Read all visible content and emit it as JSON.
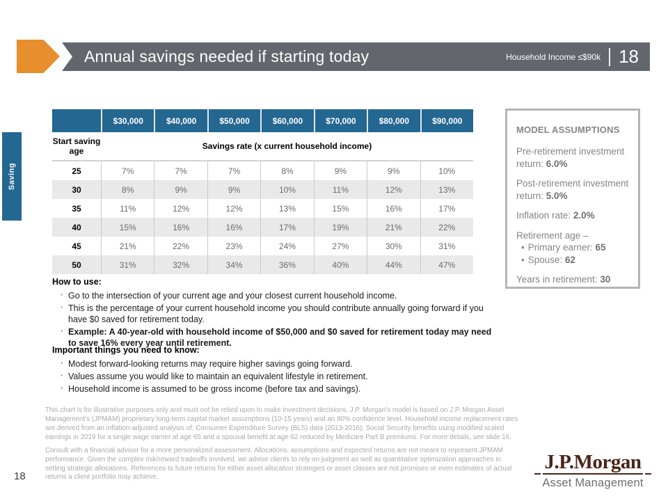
{
  "header": {
    "title": "Annual savings needed if starting today",
    "badge": "Household Income ≤$90k",
    "page_number": "18"
  },
  "side_tab": {
    "label": "Saving"
  },
  "table": {
    "income_columns": [
      "$30,000",
      "$40,000",
      "$50,000",
      "$60,000",
      "$70,000",
      "$80,000",
      "$90,000"
    ],
    "row_label_header": "Start saving age",
    "col_group_header": "Savings rate (x current household income)",
    "rows": [
      {
        "age": "25",
        "values": [
          "7%",
          "7%",
          "7%",
          "8%",
          "9%",
          "9%",
          "10%"
        ]
      },
      {
        "age": "30",
        "values": [
          "8%",
          "9%",
          "9%",
          "10%",
          "11%",
          "12%",
          "13%"
        ]
      },
      {
        "age": "35",
        "values": [
          "11%",
          "12%",
          "12%",
          "13%",
          "15%",
          "16%",
          "17%"
        ]
      },
      {
        "age": "40",
        "values": [
          "15%",
          "16%",
          "16%",
          "17%",
          "19%",
          "21%",
          "22%"
        ]
      },
      {
        "age": "45",
        "values": [
          "21%",
          "22%",
          "23%",
          "24%",
          "27%",
          "30%",
          "31%"
        ]
      },
      {
        "age": "50",
        "values": [
          "31%",
          "32%",
          "34%",
          "36%",
          "40%",
          "44%",
          "47%"
        ]
      }
    ]
  },
  "chart_data": {
    "type": "table",
    "title": "Annual savings needed if starting today",
    "columns": [
      "Start saving age",
      "$30,000",
      "$40,000",
      "$50,000",
      "$60,000",
      "$70,000",
      "$80,000",
      "$90,000"
    ],
    "rows": [
      [
        "25",
        "7%",
        "7%",
        "7%",
        "8%",
        "9%",
        "9%",
        "10%"
      ],
      [
        "30",
        "8%",
        "9%",
        "9%",
        "10%",
        "11%",
        "12%",
        "13%"
      ],
      [
        "35",
        "11%",
        "12%",
        "12%",
        "13%",
        "15%",
        "16%",
        "17%"
      ],
      [
        "40",
        "15%",
        "16%",
        "16%",
        "17%",
        "19%",
        "21%",
        "22%"
      ],
      [
        "45",
        "21%",
        "22%",
        "23%",
        "24%",
        "27%",
        "30%",
        "31%"
      ],
      [
        "50",
        "31%",
        "32%",
        "34%",
        "36%",
        "40%",
        "44%",
        "47%"
      ]
    ]
  },
  "how_to_use": {
    "heading": "How to use:",
    "bullets": [
      {
        "text": "Go to the intersection of your current age and your closest current household income.",
        "bold": false
      },
      {
        "text": "This is the percentage of your current household income you should contribute annually going forward if you have $0 saved for retirement today.",
        "bold": false
      },
      {
        "text": "Example: A 40-year-old with household income of $50,000 and $0 saved for retirement today may need to save 16% every year until retirement.",
        "bold": true
      }
    ]
  },
  "important": {
    "heading": "Important things you need to know:",
    "bullets": [
      {
        "text": "Modest forward-looking returns may require higher savings going forward.",
        "bold": false
      },
      {
        "text": "Values assume you would like to maintain an equivalent lifestyle in retirement.",
        "bold": false
      },
      {
        "text": "Household income is assumed to be gross income (before tax and savings).",
        "bold": false
      }
    ]
  },
  "assumptions": {
    "heading": "MODEL ASSUMPTIONS",
    "items": [
      {
        "label": "Pre-retirement investment return:",
        "value": "6.0%"
      },
      {
        "label": "Post-retirement investment return:",
        "value": "5.0%"
      },
      {
        "label": "Inflation rate:",
        "value": "2.0%"
      },
      {
        "label": "Retirement age –",
        "sub": [
          {
            "label": "Primary earner:",
            "value": "65"
          },
          {
            "label": "Spouse:",
            "value": "62"
          }
        ]
      },
      {
        "label": "Years in retirement:",
        "value": "30"
      }
    ]
  },
  "disclaimer": {
    "p1": "This chart is for illustrative purposes only and must not be relied upon to make investment decisions. J.P. Morgan’s model is based on J.P. Morgan Asset Management’s (JPMAM) proprietary long-term capital market assumptions (10-15 years) and an 80% confidence level. Household income replacement rates are derived from an inflation-adjusted analysis of: Consumer Expenditure Survey (BLS) data (2013-2016); Social Security benefits using modified scaled earnings in 2019 for a single wage earner at age 65 and a spousal benefit at age 62 reduced by Medicare Part B premiums. For more details, see slide 16.",
    "p2": "Consult with a financial advisor for a more personalized assessment. Allocations, assumptions and expected returns are not meant to represent JPMAM performance. Given the complex risk/reward tradeoffs involved, we advise clients to rely on judgment as well as quantitative optimization approaches in setting strategic allocations. References to future returns for either asset allocation strategies or asset classes are not promises or even estimates of actual returns a client portfolio may achieve."
  },
  "footer": {
    "page_number": "18",
    "logo_name": "J.P.Morgan",
    "logo_division": "Asset Management"
  },
  "colors": {
    "accent_orange": "#e78e2d",
    "header_gray": "#63666d",
    "table_blue": "#246791",
    "row_alt_gray": "#e9e9e9",
    "logo_brown": "#4a2418"
  }
}
